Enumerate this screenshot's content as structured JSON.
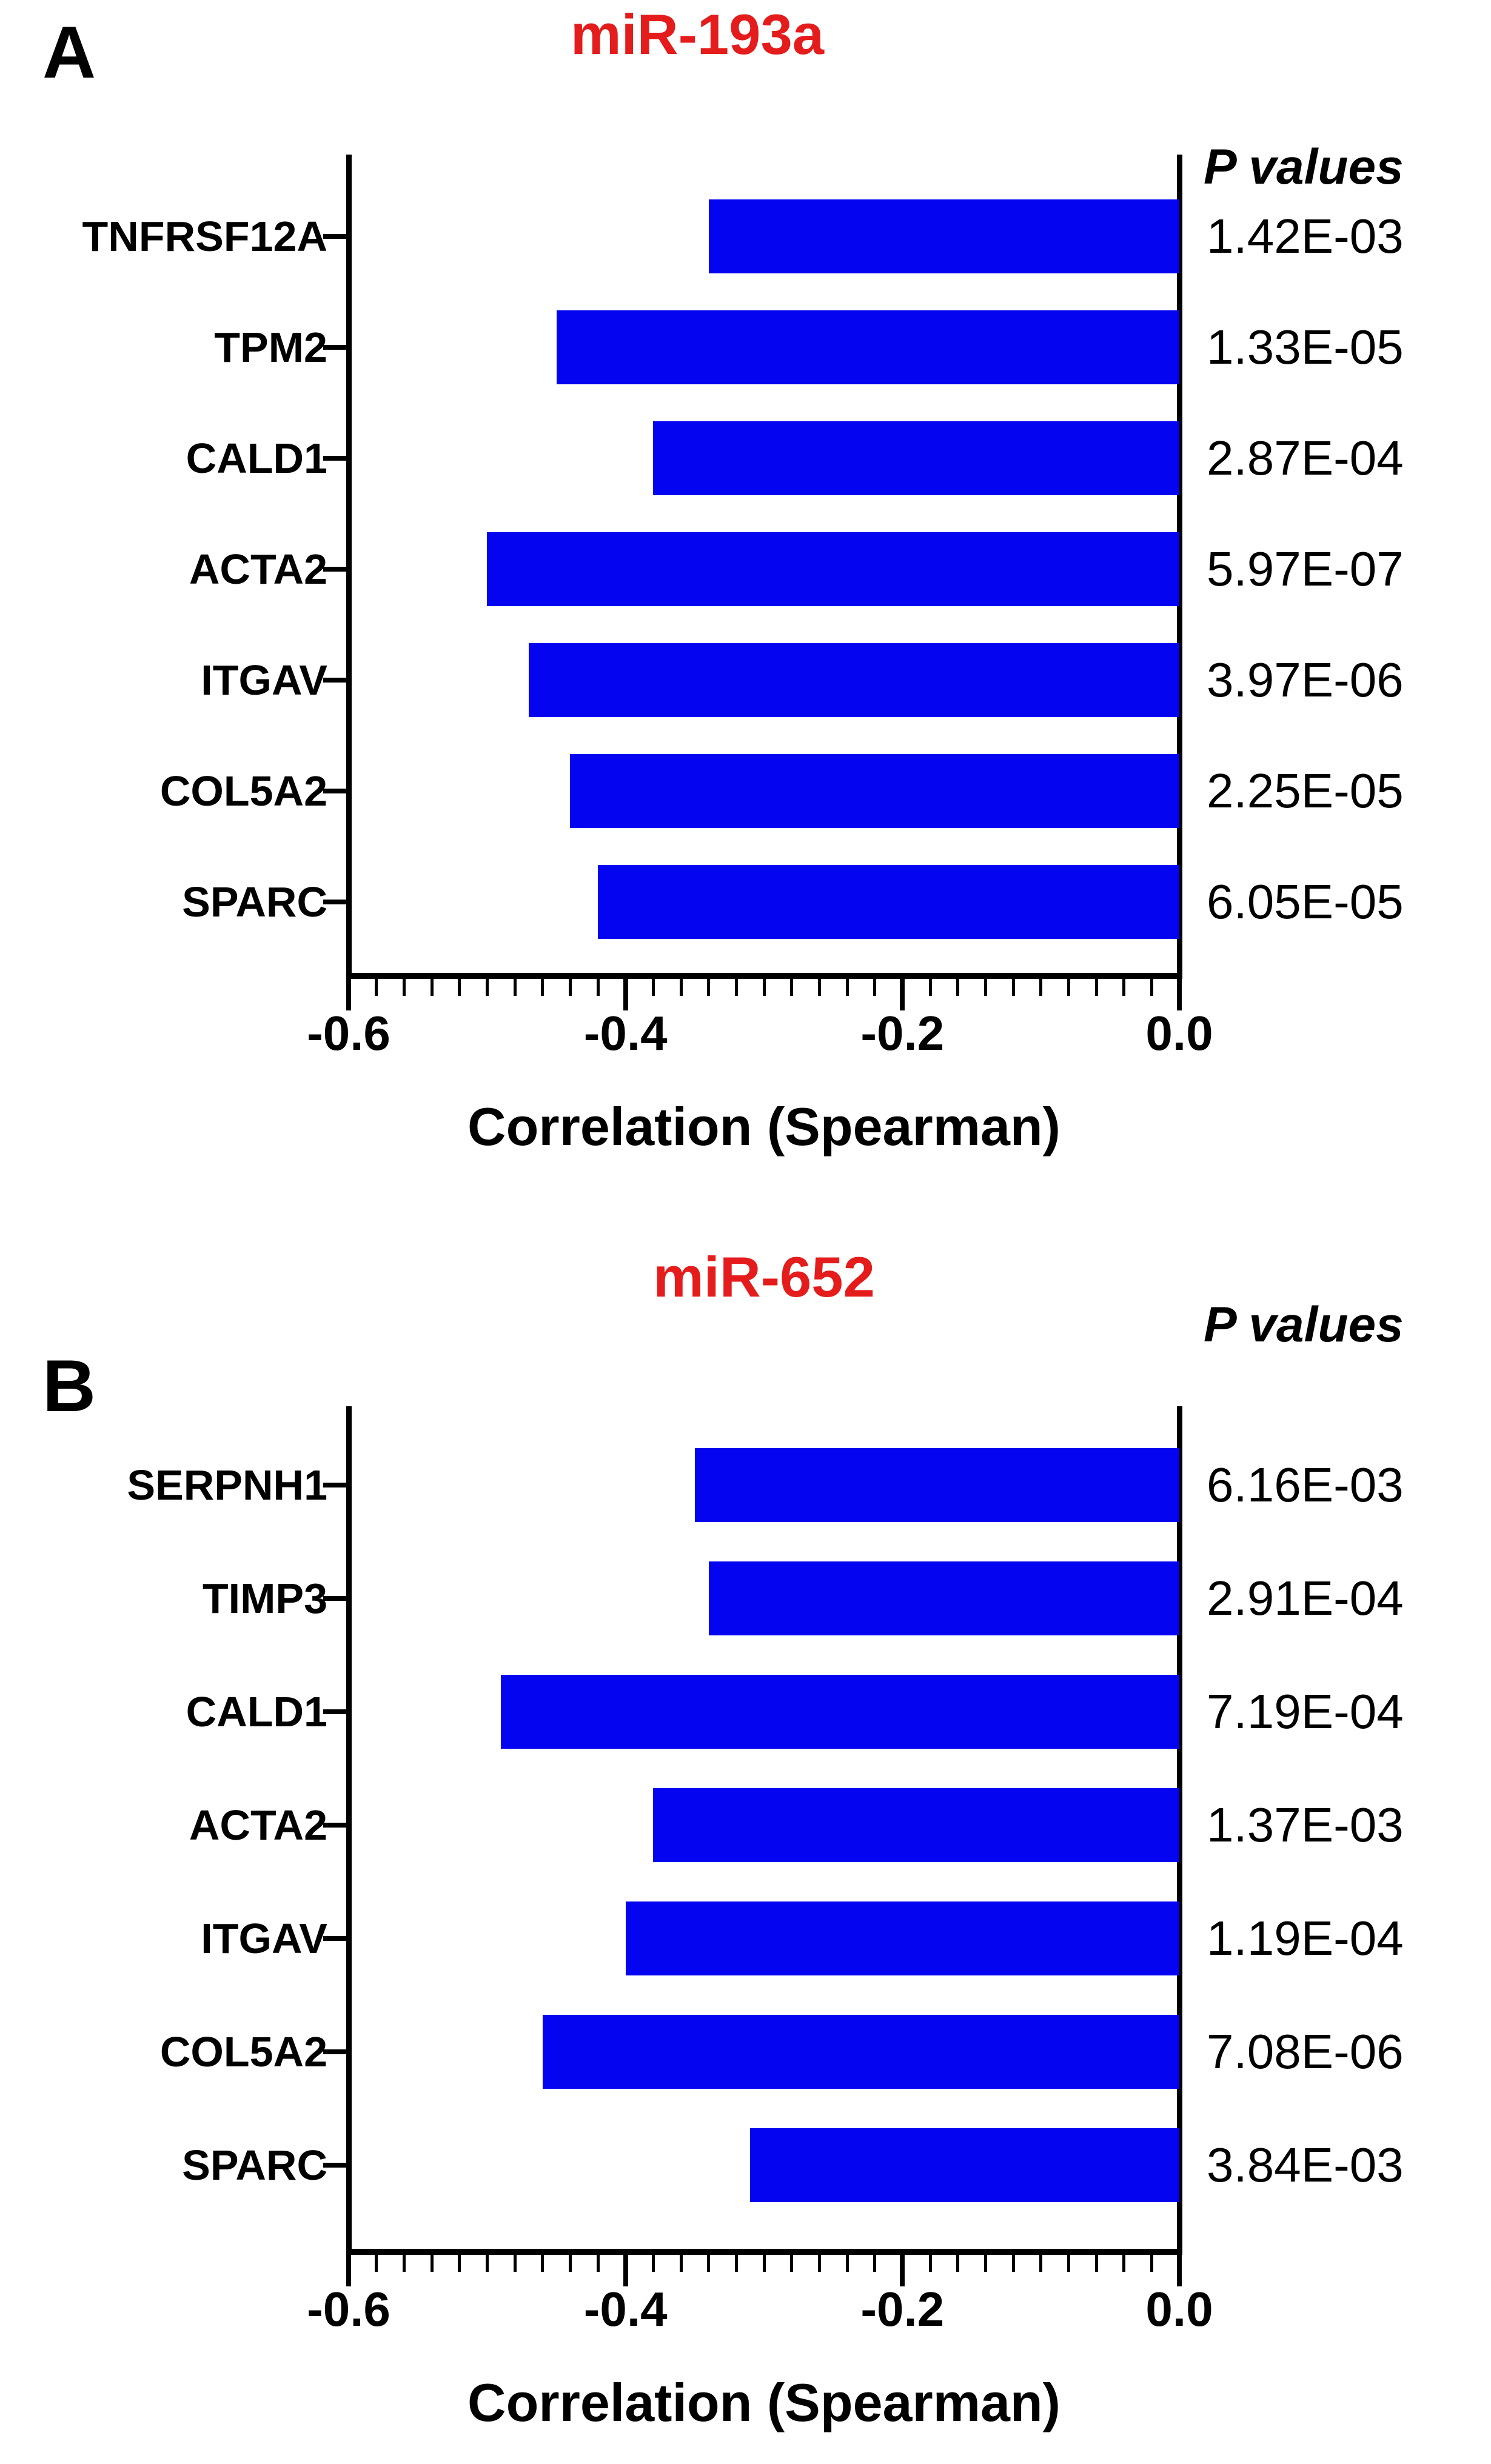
{
  "figure": {
    "background": "#ffffff",
    "bar_color": "#0404f0",
    "title_color": "#e41c1c",
    "axis_color": "#000000",
    "text_color": "#000000"
  },
  "chart_data": [
    {
      "type": "bar",
      "orientation": "horizontal",
      "panel_label": "A",
      "title": "miR-193a",
      "p_values_header": "P values",
      "categories": [
        "TNFRSF12A",
        "TPM2",
        "CALD1",
        "ACTA2",
        "ITGAV",
        "COL5A2",
        "SPARC"
      ],
      "values": [
        -0.34,
        -0.45,
        -0.38,
        -0.5,
        -0.47,
        -0.44,
        -0.42
      ],
      "p_values": [
        "1.42E-03",
        "1.33E-05",
        "2.87E-04",
        "5.97E-07",
        "3.97E-06",
        "2.25E-05",
        "6.05E-05"
      ],
      "xlabel": "Correlation (Spearman)",
      "xlim": [
        -0.6,
        0.0
      ],
      "xticks": [
        -0.6,
        -0.4,
        -0.2,
        0.0
      ],
      "xtick_labels": [
        "-0.6",
        "-0.4",
        "-0.2",
        "0.0"
      ],
      "minor_tick_step": 0.02,
      "grid": false,
      "legend": "none"
    },
    {
      "type": "bar",
      "orientation": "horizontal",
      "panel_label": "B",
      "title": "miR-652",
      "p_values_header": "P values",
      "categories": [
        "SERPNH1",
        "TIMP3",
        "CALD1",
        "ACTA2",
        "ITGAV",
        "COL5A2",
        "SPARC"
      ],
      "values": [
        -0.35,
        -0.34,
        -0.49,
        -0.38,
        -0.4,
        -0.46,
        -0.31
      ],
      "p_values": [
        "6.16E-03",
        "2.91E-04",
        "7.19E-04",
        "1.37E-03",
        "1.19E-04",
        "7.08E-06",
        "3.84E-03"
      ],
      "xlabel": "Correlation (Spearman)",
      "xlim": [
        -0.6,
        0.0
      ],
      "xticks": [
        -0.6,
        -0.4,
        -0.2,
        0.0
      ],
      "xtick_labels": [
        "-0.6",
        "-0.4",
        "-0.2",
        "0.0"
      ],
      "minor_tick_step": 0.02,
      "grid": false,
      "legend": "none"
    }
  ]
}
